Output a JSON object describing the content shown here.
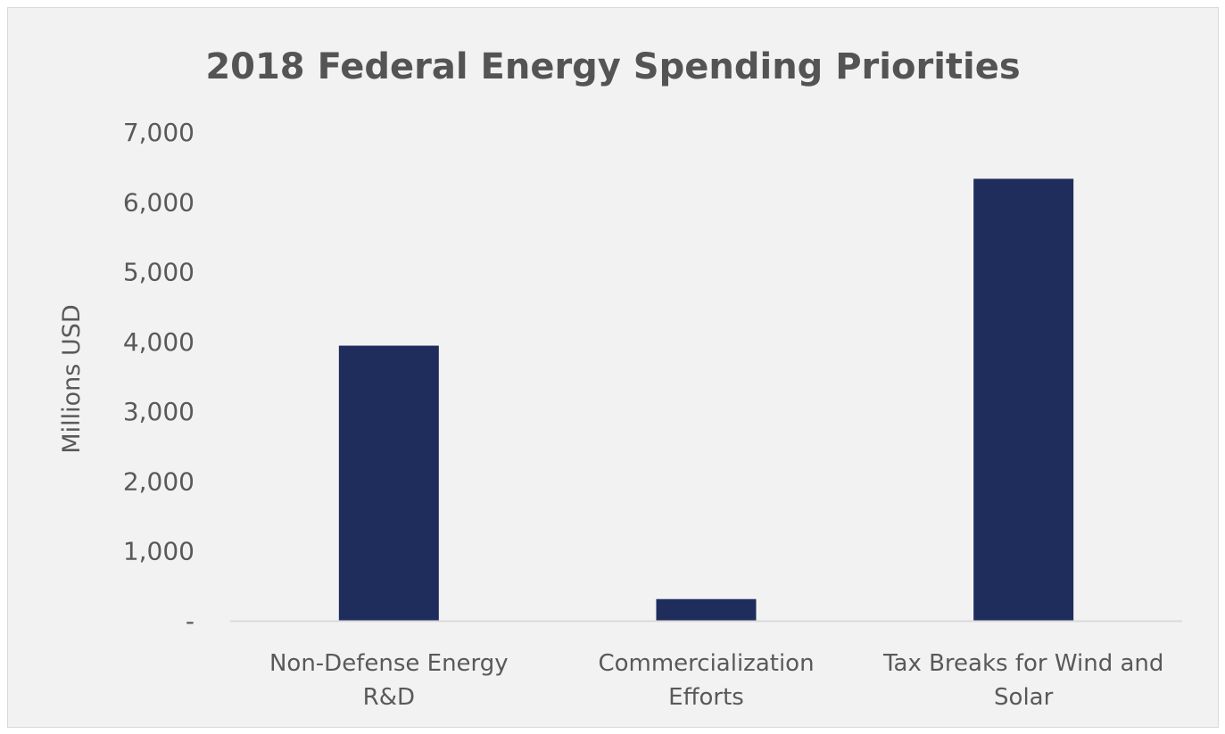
{
  "chart_data": {
    "type": "bar",
    "title": "2018 Federal Energy Spending Priorities",
    "xlabel": "",
    "ylabel": "Millions USD",
    "categories": [
      [
        "Non-Defense Energy",
        "R&D"
      ],
      [
        "Commercialization",
        "Efforts"
      ],
      [
        "Tax Breaks for Wind and",
        "Solar"
      ]
    ],
    "values": [
      3940,
      310,
      6330
    ],
    "ylim": [
      0,
      7000
    ],
    "yticks": [
      0,
      1000,
      2000,
      3000,
      4000,
      5000,
      6000,
      7000
    ],
    "ytick_labels": [
      "-",
      "1,000",
      "2,000",
      "3,000",
      "4,000",
      "5,000",
      "6,000",
      "7,000"
    ],
    "grid": false,
    "legend": "none",
    "colors": {
      "bar": "#1f2d5c",
      "text": "#595959",
      "title": "#545454",
      "axis": "#d9d9d9",
      "background": "#f2f2f2"
    }
  }
}
